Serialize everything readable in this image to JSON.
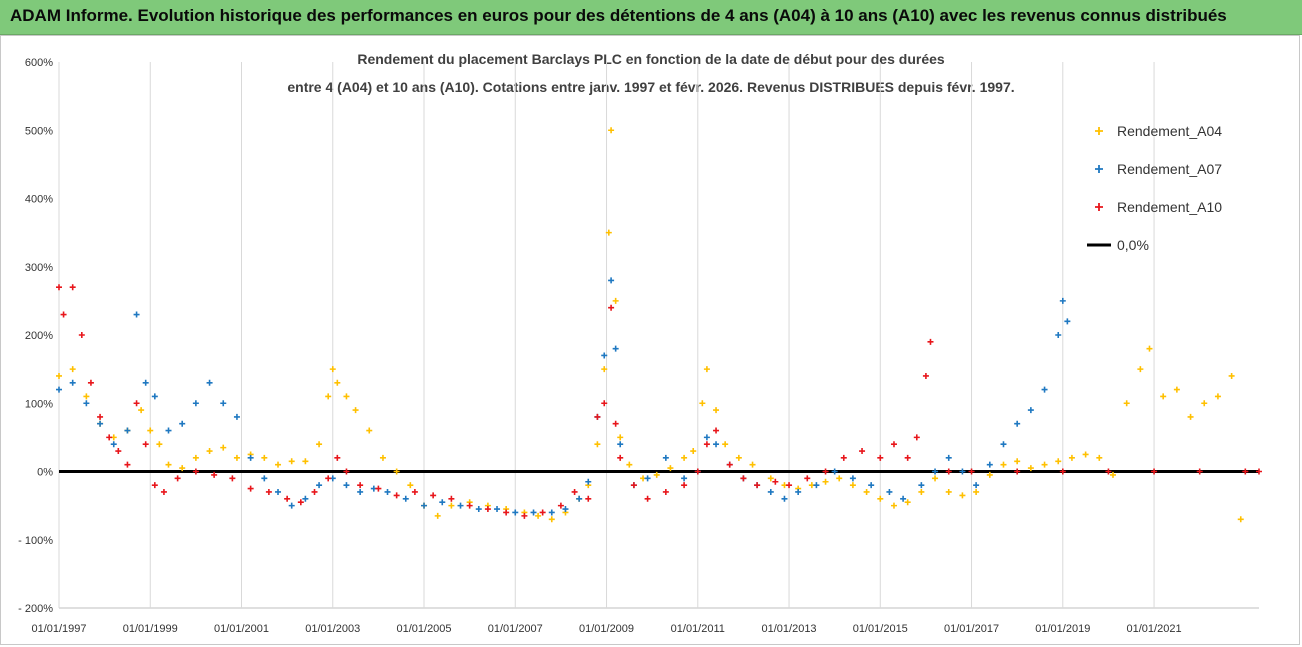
{
  "banner": {
    "title": "ADAM Informe. Evolution historique des performances en euros pour des détentions de 4 ans (A04) à 10 ans (A10) avec les revenus connus distribués"
  },
  "chart_data": {
    "type": "scatter",
    "title_line1": "Rendement du placement Barclays PLC en fonction de la date de début pour des durées",
    "title_line2": "entre 4 (A04) et 10 ans (A10). Cotations entre janv. 1997 et févr. 2026. Revenus DISTRIBUES depuis févr. 1997.",
    "ylim": [
      -200,
      600
    ],
    "xlim": [
      1997.0,
      2023.3
    ],
    "y_ticks": [
      {
        "value": 600,
        "label": "600%"
      },
      {
        "value": 500,
        "label": "500%"
      },
      {
        "value": 400,
        "label": "400%"
      },
      {
        "value": 300,
        "label": "300%"
      },
      {
        "value": 200,
        "label": "200%"
      },
      {
        "value": 100,
        "label": "100%"
      },
      {
        "value": 0,
        "label": "0%"
      },
      {
        "value": -100,
        "label": "- 100%"
      },
      {
        "value": -200,
        "label": "- 200%"
      }
    ],
    "x_ticks": [
      {
        "value": 1997,
        "label": "01/01/1997"
      },
      {
        "value": 1999,
        "label": "01/01/1999"
      },
      {
        "value": 2001,
        "label": "01/01/2001"
      },
      {
        "value": 2003,
        "label": "01/01/2003"
      },
      {
        "value": 2005,
        "label": "01/01/2005"
      },
      {
        "value": 2007,
        "label": "01/01/2007"
      },
      {
        "value": 2009,
        "label": "01/01/2009"
      },
      {
        "value": 2011,
        "label": "01/01/2011"
      },
      {
        "value": 2013,
        "label": "01/01/2013"
      },
      {
        "value": 2015,
        "label": "01/01/2015"
      },
      {
        "value": 2017,
        "label": "01/01/2017"
      },
      {
        "value": 2019,
        "label": "01/01/2019"
      },
      {
        "value": 2021,
        "label": "01/01/2021"
      }
    ],
    "series": [
      {
        "name": "Rendement_A04",
        "color": "#ffc000",
        "points": [
          [
            1997.0,
            140
          ],
          [
            1997.3,
            150
          ],
          [
            1997.6,
            110
          ],
          [
            1997.9,
            70
          ],
          [
            1998.2,
            50
          ],
          [
            1998.5,
            60
          ],
          [
            1998.8,
            90
          ],
          [
            1999.0,
            60
          ],
          [
            1999.2,
            40
          ],
          [
            1999.4,
            10
          ],
          [
            1999.7,
            5
          ],
          [
            2000.0,
            20
          ],
          [
            2000.3,
            30
          ],
          [
            2000.6,
            35
          ],
          [
            2000.9,
            20
          ],
          [
            2001.2,
            25
          ],
          [
            2001.5,
            20
          ],
          [
            2001.8,
            10
          ],
          [
            2002.1,
            15
          ],
          [
            2002.4,
            15
          ],
          [
            2002.7,
            40
          ],
          [
            2002.9,
            110
          ],
          [
            2003.0,
            150
          ],
          [
            2003.1,
            130
          ],
          [
            2003.3,
            110
          ],
          [
            2003.5,
            90
          ],
          [
            2003.8,
            60
          ],
          [
            2004.1,
            20
          ],
          [
            2004.4,
            0
          ],
          [
            2004.7,
            -20
          ],
          [
            2005.0,
            -50
          ],
          [
            2005.3,
            -65
          ],
          [
            2005.6,
            -50
          ],
          [
            2006.0,
            -45
          ],
          [
            2006.4,
            -50
          ],
          [
            2006.8,
            -55
          ],
          [
            2007.2,
            -60
          ],
          [
            2007.5,
            -65
          ],
          [
            2007.8,
            -70
          ],
          [
            2008.1,
            -60
          ],
          [
            2008.4,
            -40
          ],
          [
            2008.6,
            -20
          ],
          [
            2008.8,
            40
          ],
          [
            2008.95,
            150
          ],
          [
            2009.05,
            350
          ],
          [
            2009.1,
            500
          ],
          [
            2009.2,
            250
          ],
          [
            2009.3,
            50
          ],
          [
            2009.5,
            10
          ],
          [
            2009.8,
            -10
          ],
          [
            2010.1,
            -5
          ],
          [
            2010.4,
            5
          ],
          [
            2010.7,
            20
          ],
          [
            2010.9,
            30
          ],
          [
            2011.1,
            100
          ],
          [
            2011.2,
            150
          ],
          [
            2011.4,
            90
          ],
          [
            2011.6,
            40
          ],
          [
            2011.9,
            20
          ],
          [
            2012.2,
            10
          ],
          [
            2012.6,
            -10
          ],
          [
            2012.9,
            -20
          ],
          [
            2013.2,
            -25
          ],
          [
            2013.5,
            -20
          ],
          [
            2013.8,
            -15
          ],
          [
            2014.1,
            -10
          ],
          [
            2014.4,
            -20
          ],
          [
            2014.7,
            -30
          ],
          [
            2015.0,
            -40
          ],
          [
            2015.3,
            -50
          ],
          [
            2015.6,
            -45
          ],
          [
            2015.9,
            -30
          ],
          [
            2016.2,
            -10
          ],
          [
            2016.5,
            -30
          ],
          [
            2016.8,
            -35
          ],
          [
            2017.1,
            -30
          ],
          [
            2017.4,
            -5
          ],
          [
            2017.7,
            10
          ],
          [
            2018.0,
            15
          ],
          [
            2018.3,
            5
          ],
          [
            2018.6,
            10
          ],
          [
            2018.9,
            15
          ],
          [
            2019.2,
            20
          ],
          [
            2019.5,
            25
          ],
          [
            2019.8,
            20
          ],
          [
            2020.1,
            -5
          ],
          [
            2020.4,
            100
          ],
          [
            2020.7,
            150
          ],
          [
            2020.9,
            180
          ],
          [
            2021.2,
            110
          ],
          [
            2021.5,
            120
          ],
          [
            2021.8,
            80
          ],
          [
            2022.1,
            100
          ],
          [
            2022.4,
            110
          ],
          [
            2022.7,
            140
          ],
          [
            2022.9,
            -70
          ]
        ]
      },
      {
        "name": "Rendement_A07",
        "color": "#1f78c1",
        "points": [
          [
            1997.0,
            120
          ],
          [
            1997.3,
            130
          ],
          [
            1997.6,
            100
          ],
          [
            1997.9,
            70
          ],
          [
            1998.2,
            40
          ],
          [
            1998.5,
            60
          ],
          [
            1998.7,
            230
          ],
          [
            1998.9,
            130
          ],
          [
            1999.1,
            110
          ],
          [
            1999.4,
            60
          ],
          [
            1999.7,
            70
          ],
          [
            2000.0,
            100
          ],
          [
            2000.3,
            130
          ],
          [
            2000.6,
            100
          ],
          [
            2000.9,
            80
          ],
          [
            2001.2,
            20
          ],
          [
            2001.5,
            -10
          ],
          [
            2001.8,
            -30
          ],
          [
            2002.1,
            -50
          ],
          [
            2002.4,
            -40
          ],
          [
            2002.7,
            -20
          ],
          [
            2003.0,
            -10
          ],
          [
            2003.3,
            -20
          ],
          [
            2003.6,
            -30
          ],
          [
            2003.9,
            -25
          ],
          [
            2004.2,
            -30
          ],
          [
            2004.6,
            -40
          ],
          [
            2005.0,
            -50
          ],
          [
            2005.4,
            -45
          ],
          [
            2005.8,
            -50
          ],
          [
            2006.2,
            -55
          ],
          [
            2006.6,
            -55
          ],
          [
            2007.0,
            -60
          ],
          [
            2007.4,
            -60
          ],
          [
            2007.8,
            -60
          ],
          [
            2008.1,
            -55
          ],
          [
            2008.4,
            -40
          ],
          [
            2008.6,
            -15
          ],
          [
            2008.8,
            80
          ],
          [
            2008.95,
            170
          ],
          [
            2009.1,
            280
          ],
          [
            2009.2,
            180
          ],
          [
            2009.3,
            40
          ],
          [
            2009.6,
            -20
          ],
          [
            2009.9,
            -10
          ],
          [
            2010.3,
            20
          ],
          [
            2010.7,
            -10
          ],
          [
            2011.0,
            0
          ],
          [
            2011.2,
            50
          ],
          [
            2011.4,
            40
          ],
          [
            2011.7,
            10
          ],
          [
            2012.0,
            -10
          ],
          [
            2012.3,
            -20
          ],
          [
            2012.6,
            -30
          ],
          [
            2012.9,
            -40
          ],
          [
            2013.2,
            -30
          ],
          [
            2013.6,
            -20
          ],
          [
            2014.0,
            0
          ],
          [
            2014.4,
            -10
          ],
          [
            2014.8,
            -20
          ],
          [
            2015.2,
            -30
          ],
          [
            2015.5,
            -40
          ],
          [
            2015.9,
            -20
          ],
          [
            2016.2,
            0
          ],
          [
            2016.5,
            20
          ],
          [
            2016.8,
            0
          ],
          [
            2017.1,
            -20
          ],
          [
            2017.4,
            10
          ],
          [
            2017.7,
            40
          ],
          [
            2018.0,
            70
          ],
          [
            2018.3,
            90
          ],
          [
            2018.6,
            120
          ],
          [
            2018.9,
            200
          ],
          [
            2019.0,
            250
          ],
          [
            2019.1,
            220
          ]
        ]
      },
      {
        "name": "Rendement_A10",
        "color": "#e8161b",
        "points": [
          [
            1997.0,
            270
          ],
          [
            1997.1,
            230
          ],
          [
            1997.3,
            270
          ],
          [
            1997.5,
            200
          ],
          [
            1997.7,
            130
          ],
          [
            1997.9,
            80
          ],
          [
            1998.1,
            50
          ],
          [
            1998.3,
            30
          ],
          [
            1998.5,
            10
          ],
          [
            1998.7,
            100
          ],
          [
            1998.9,
            40
          ],
          [
            1999.1,
            -20
          ],
          [
            1999.3,
            -30
          ],
          [
            1999.6,
            -10
          ],
          [
            2000.0,
            0
          ],
          [
            2000.4,
            -5
          ],
          [
            2000.8,
            -10
          ],
          [
            2001.2,
            -25
          ],
          [
            2001.6,
            -30
          ],
          [
            2002.0,
            -40
          ],
          [
            2002.3,
            -45
          ],
          [
            2002.6,
            -30
          ],
          [
            2002.9,
            -10
          ],
          [
            2003.1,
            20
          ],
          [
            2003.3,
            0
          ],
          [
            2003.6,
            -20
          ],
          [
            2004.0,
            -25
          ],
          [
            2004.4,
            -35
          ],
          [
            2004.8,
            -30
          ],
          [
            2005.2,
            -35
          ],
          [
            2005.6,
            -40
          ],
          [
            2006.0,
            -50
          ],
          [
            2006.4,
            -55
          ],
          [
            2006.8,
            -60
          ],
          [
            2007.2,
            -65
          ],
          [
            2007.6,
            -60
          ],
          [
            2008.0,
            -50
          ],
          [
            2008.3,
            -30
          ],
          [
            2008.6,
            -40
          ],
          [
            2008.8,
            80
          ],
          [
            2008.95,
            100
          ],
          [
            2009.1,
            240
          ],
          [
            2009.2,
            70
          ],
          [
            2009.3,
            20
          ],
          [
            2009.6,
            -20
          ],
          [
            2009.9,
            -40
          ],
          [
            2010.3,
            -30
          ],
          [
            2010.7,
            -20
          ],
          [
            2011.0,
            0
          ],
          [
            2011.2,
            40
          ],
          [
            2011.4,
            60
          ],
          [
            2011.7,
            10
          ],
          [
            2012.0,
            -10
          ],
          [
            2012.3,
            -20
          ],
          [
            2012.7,
            -15
          ],
          [
            2013.0,
            -20
          ],
          [
            2013.4,
            -10
          ],
          [
            2013.8,
            0
          ],
          [
            2014.2,
            20
          ],
          [
            2014.6,
            30
          ],
          [
            2015.0,
            20
          ],
          [
            2015.3,
            40
          ],
          [
            2015.6,
            20
          ],
          [
            2015.8,
            50
          ],
          [
            2016.0,
            140
          ],
          [
            2016.1,
            190
          ],
          [
            2016.5,
            0
          ],
          [
            2017.0,
            0
          ],
          [
            2018.0,
            0
          ],
          [
            2019.0,
            0
          ],
          [
            2020.0,
            0
          ],
          [
            2021.0,
            0
          ],
          [
            2022.0,
            0
          ],
          [
            2023.0,
            0
          ],
          [
            2023.3,
            0
          ]
        ]
      }
    ],
    "reference_line": {
      "name": "0,0%",
      "value": 0,
      "color": "#000000"
    }
  }
}
